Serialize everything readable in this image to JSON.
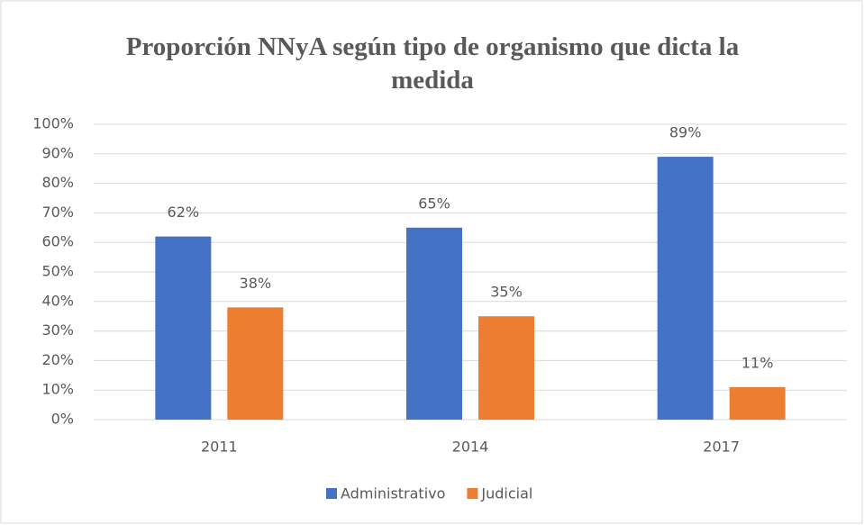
{
  "chart_data": {
    "type": "bar",
    "title": "Proporción NNyA según tipo de organismo que dicta la medida",
    "categories": [
      "2011",
      "2014",
      "2017"
    ],
    "series": [
      {
        "name": "Administrativo",
        "color": "#4472c4",
        "values": [
          62,
          65,
          89
        ],
        "value_labels": [
          "62%",
          "65%",
          "89%"
        ]
      },
      {
        "name": "Judicial",
        "color": "#ed7d31",
        "values": [
          38,
          35,
          11
        ],
        "value_labels": [
          "38%",
          "35%",
          "11%"
        ]
      }
    ],
    "ylim": [
      0,
      100
    ],
    "yticks": [
      {
        "value": 0,
        "label": "0%"
      },
      {
        "value": 10,
        "label": "10%"
      },
      {
        "value": 20,
        "label": "20%"
      },
      {
        "value": 30,
        "label": "30%"
      },
      {
        "value": 40,
        "label": "40%"
      },
      {
        "value": 50,
        "label": "50%"
      },
      {
        "value": 60,
        "label": "60%"
      },
      {
        "value": 70,
        "label": "70%"
      },
      {
        "value": 80,
        "label": "80%"
      },
      {
        "value": 90,
        "label": "90%"
      },
      {
        "value": 100,
        "label": "100%"
      }
    ],
    "grid": true,
    "legend": "bottom"
  }
}
